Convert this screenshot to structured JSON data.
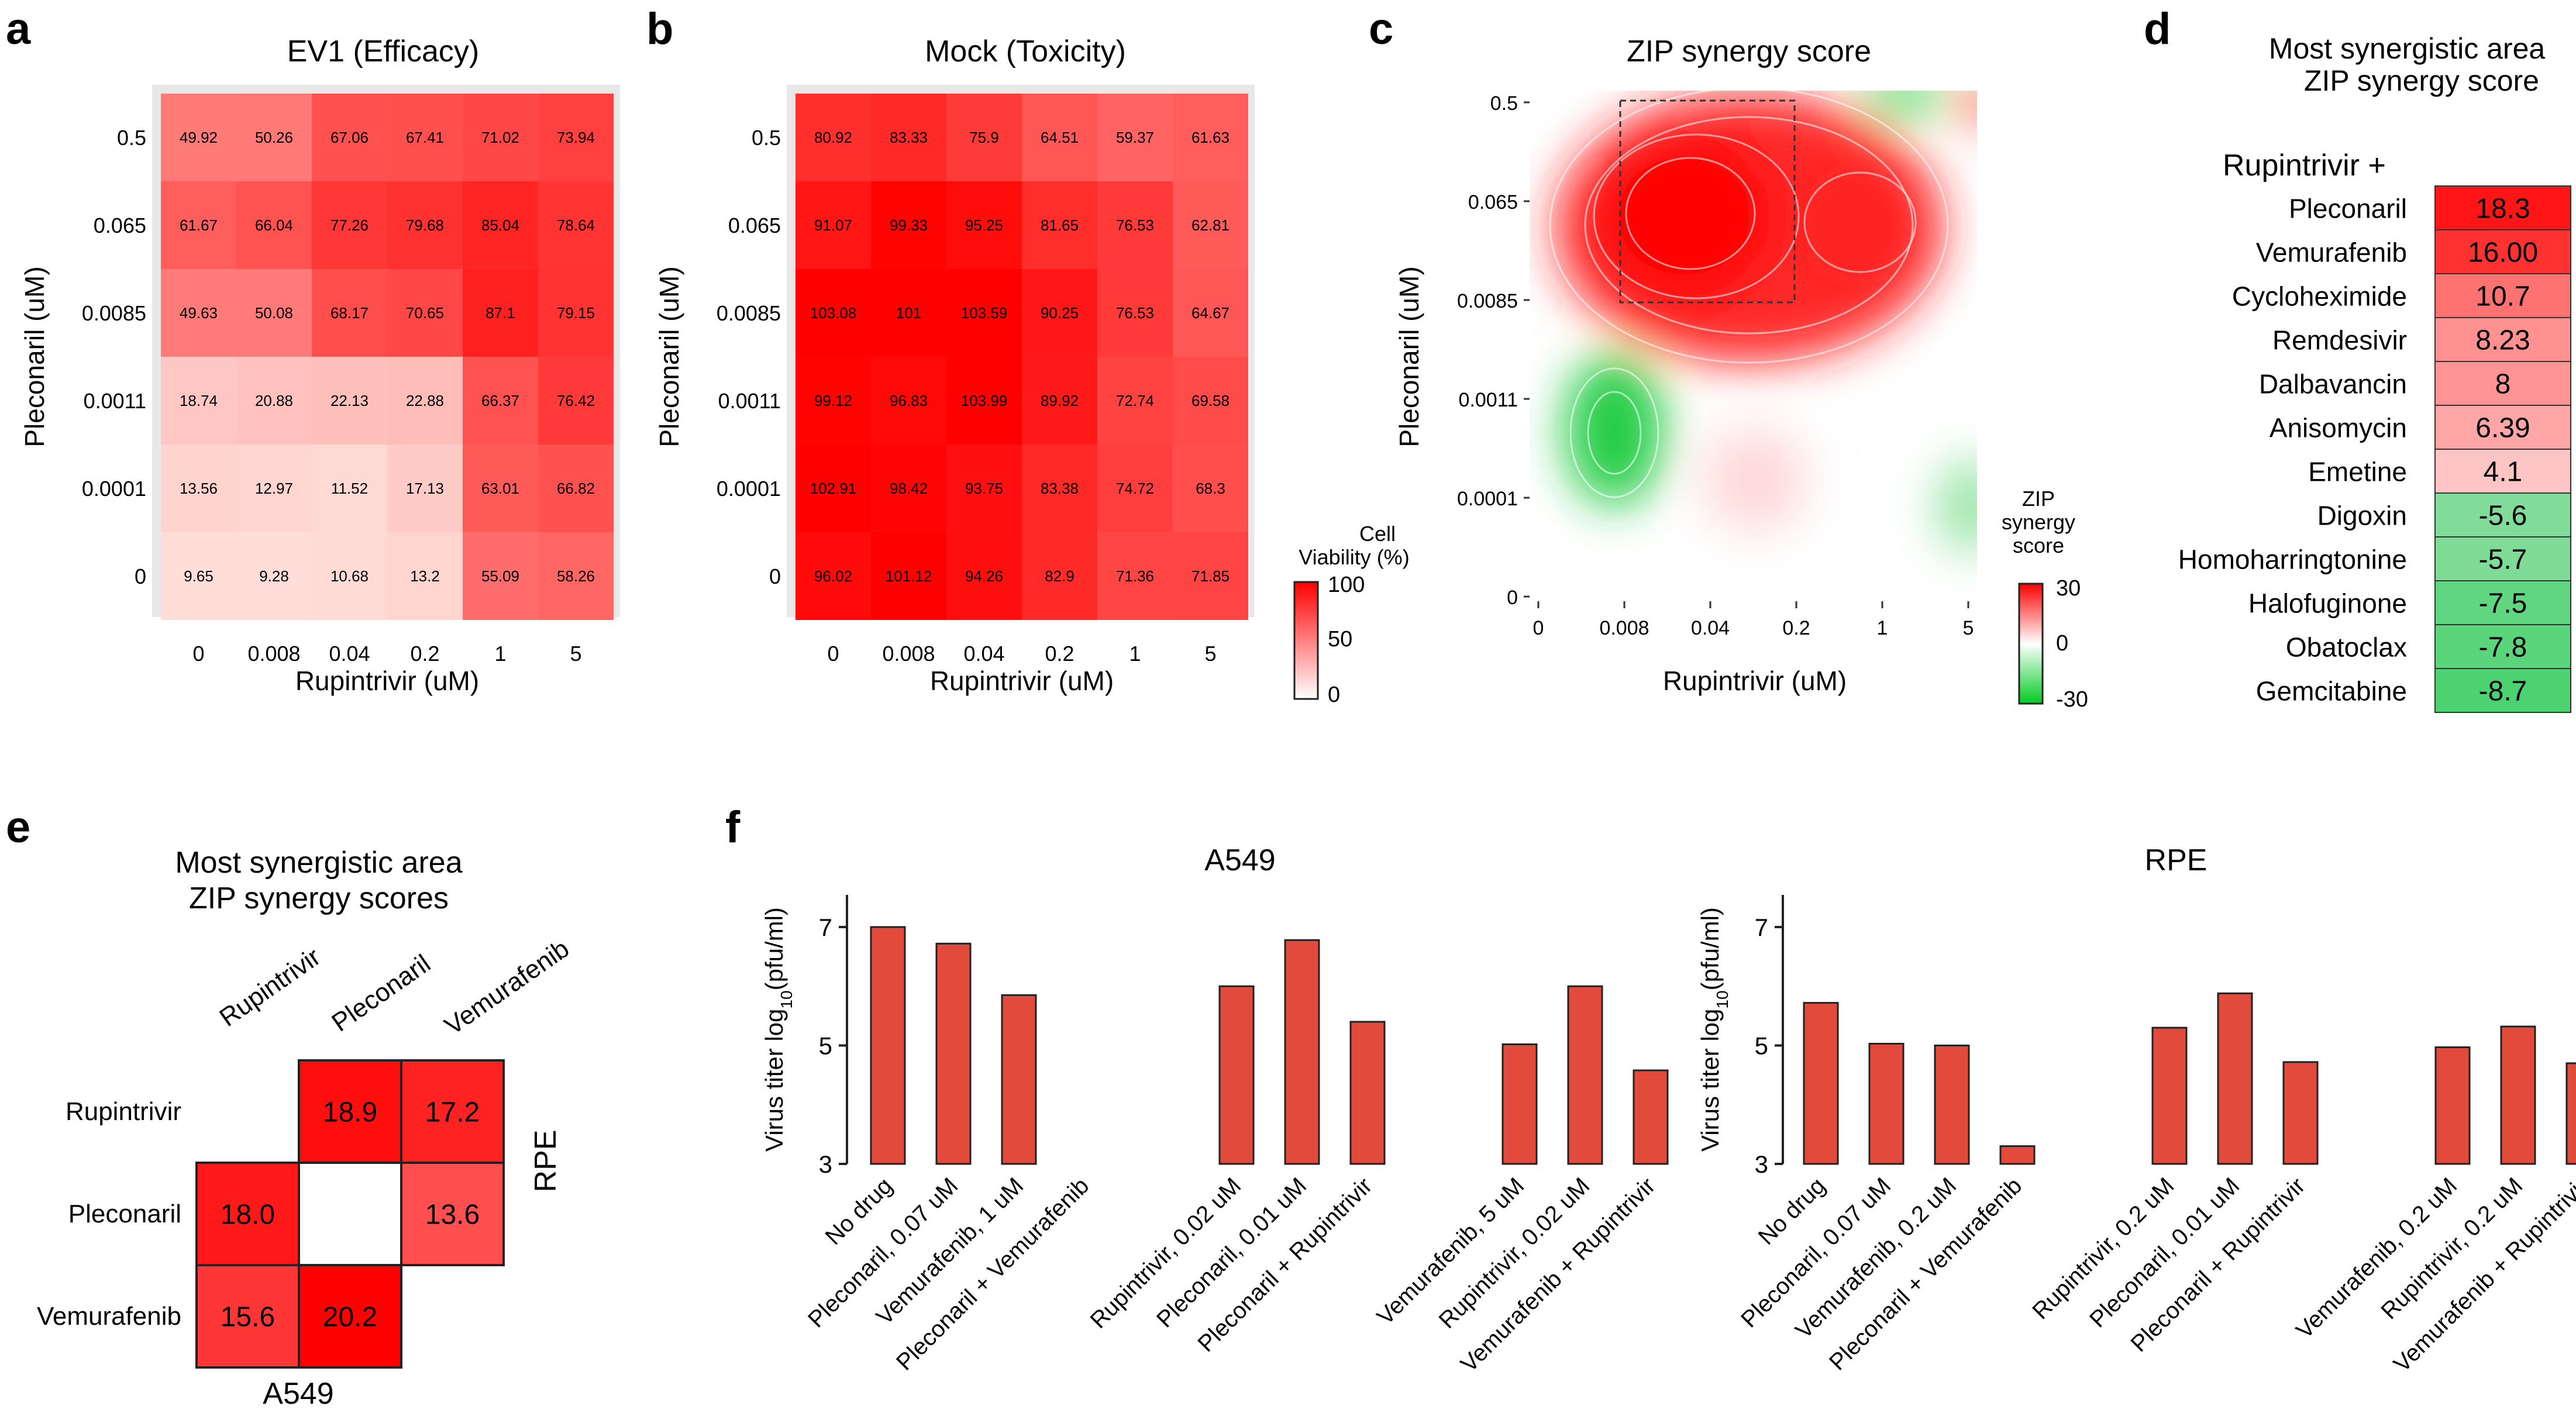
{
  "panels": {
    "a": {
      "letter": "a",
      "title": "EV1 (Efficacy)"
    },
    "b": {
      "letter": "b",
      "title": "Mock (Toxicity)"
    },
    "c": {
      "letter": "c",
      "title": "ZIP synergy score"
    },
    "d": {
      "letter": "d",
      "title_line1": "Most synergistic area",
      "title_line2": "ZIP synergy score",
      "subtitle": "Rupintrivir +"
    },
    "e": {
      "letter": "e",
      "title_line1": "Most synergistic area",
      "title_line2": "ZIP synergy scores"
    },
    "f": {
      "letter": "f"
    }
  },
  "colors": {
    "red": "#ff0000",
    "green": "#22cc44",
    "bar": "#e24a3b",
    "cell_low": "#fdf0ec"
  },
  "chart_data": [
    {
      "id": "a",
      "type": "heatmap",
      "title": "EV1 (Efficacy)",
      "xlabel": "Rupintrivir (uM)",
      "ylabel": "Pleconaril (uM)",
      "x": [
        "0",
        "0.008",
        "0.04",
        "0.2",
        "1",
        "5"
      ],
      "y": [
        "0.5",
        "0.065",
        "0.0085",
        "0.0011",
        "0.0001",
        "0"
      ],
      "range": [
        0,
        100
      ],
      "values": [
        [
          "49.92",
          "50.26",
          "67.06",
          "67.41",
          "71.02",
          "73.94"
        ],
        [
          "61.67",
          "66.04",
          "77.26",
          "79.68",
          "85.04",
          "78.64"
        ],
        [
          "49.63",
          "50.08",
          "68.17",
          "70.65",
          "87.1",
          "79.15"
        ],
        [
          "18.74",
          "20.88",
          "22.13",
          "22.88",
          "66.37",
          "76.42"
        ],
        [
          "13.56",
          "12.97",
          "11.52",
          "17.13",
          "63.01",
          "66.82"
        ],
        [
          "9.65",
          "9.28",
          "10.68",
          "13.2",
          "55.09",
          "58.26"
        ]
      ]
    },
    {
      "id": "b",
      "type": "heatmap",
      "title": "Mock (Toxicity)",
      "xlabel": "Rupintrivir (uM)",
      "ylabel": "Pleconaril (uM)",
      "x": [
        "0",
        "0.008",
        "0.04",
        "0.2",
        "1",
        "5"
      ],
      "y": [
        "0.5",
        "0.065",
        "0.0085",
        "0.0011",
        "0.0001",
        "0"
      ],
      "range": [
        0,
        100
      ],
      "values": [
        [
          "80.92",
          "83.33",
          "75.9",
          "64.51",
          "59.37",
          "61.63"
        ],
        [
          "91.07",
          "99.33",
          "95.25",
          "81.65",
          "76.53",
          "62.81"
        ],
        [
          "103.08",
          "101",
          "103.59",
          "90.25",
          "76.53",
          "64.67"
        ],
        [
          "99.12",
          "96.83",
          "103.99",
          "89.92",
          "72.74",
          "69.58"
        ],
        [
          "102.91",
          "98.42",
          "93.75",
          "83.38",
          "74.72",
          "68.3"
        ],
        [
          "96.02",
          "101.12",
          "94.26",
          "82.9",
          "71.36",
          "71.85"
        ]
      ],
      "colorbar": {
        "title": [
          "Cell",
          "Viability (%)"
        ],
        "ticks": [
          "100",
          "50",
          "0"
        ]
      }
    },
    {
      "id": "c",
      "type": "heatmap",
      "title": "ZIP synergy score",
      "xlabel": "Rupintrivir (uM)",
      "ylabel": "Pleconaril (uM)",
      "x": [
        "0",
        "0.008",
        "0.04",
        "0.2",
        "1",
        "5"
      ],
      "y": [
        "0.5",
        "0.065",
        "0.0085",
        "0.0011",
        "0.0001",
        "0"
      ],
      "range": [
        -30,
        30
      ],
      "highlight_region": {
        "x": [
          "0.008",
          "0.2"
        ],
        "y": [
          "0.0085",
          "0.5"
        ]
      },
      "colorbar": {
        "title": [
          "ZIP",
          "synergy",
          "score"
        ],
        "ticks": [
          "30",
          "0",
          "-30"
        ]
      }
    },
    {
      "id": "d",
      "type": "table",
      "title": "Most synergistic area ZIP synergy score",
      "header": "Rupintrivir +",
      "rows": [
        {
          "drug": "Pleconaril",
          "score": "18.3",
          "v": 18.3
        },
        {
          "drug": "Vemurafenib",
          "score": "16.00",
          "v": 16.0
        },
        {
          "drug": "Cycloheximide",
          "score": "10.7",
          "v": 10.7
        },
        {
          "drug": "Remdesivir",
          "score": "8.23",
          "v": 8.23
        },
        {
          "drug": "Dalbavancin",
          "score": "8",
          "v": 8
        },
        {
          "drug": "Anisomycin",
          "score": "6.39",
          "v": 6.39
        },
        {
          "drug": "Emetine",
          "score": "4.1",
          "v": 4.1
        },
        {
          "drug": "Digoxin",
          "score": "-5.6",
          "v": -5.6
        },
        {
          "drug": "Homoharringtonine",
          "score": "-5.7",
          "v": -5.7
        },
        {
          "drug": "Halofuginone",
          "score": "-7.5",
          "v": -7.5
        },
        {
          "drug": "Obatoclax",
          "score": "-7.8",
          "v": -7.8
        },
        {
          "drug": "Gemcitabine",
          "score": "-8.7",
          "v": -8.7
        }
      ]
    },
    {
      "id": "e",
      "type": "table",
      "title": "Most synergistic area ZIP synergy scores",
      "col_labels": [
        "Rupintrivir",
        "Pleconaril",
        "Vemurafenib"
      ],
      "row_labels": [
        "Rupintrivir",
        "Pleconaril",
        "Vemurafenib"
      ],
      "rpe_label": "RPE",
      "a549_label": "A549",
      "rpe": [
        {
          "pair": [
            "Rupintrivir",
            "Pleconaril"
          ],
          "value": "18.9",
          "v": 18.9
        },
        {
          "pair": [
            "Rupintrivir",
            "Vemurafenib"
          ],
          "value": "17.2",
          "v": 17.2
        },
        {
          "pair": [
            "Pleconaril",
            "Vemurafenib"
          ],
          "value": "13.6",
          "v": 13.6
        }
      ],
      "a549": [
        {
          "pair": [
            "Pleconaril",
            "Rupintrivir"
          ],
          "value": "18.0",
          "v": 18.0
        },
        {
          "pair": [
            "Vemurafenib",
            "Rupintrivir"
          ],
          "value": "15.6",
          "v": 15.6
        },
        {
          "pair": [
            "Vemurafenib",
            "Pleconaril"
          ],
          "value": "20.2",
          "v": 20.2
        }
      ]
    },
    {
      "id": "f-a549",
      "type": "bar",
      "title": "A549",
      "ylabel": "Virus titer log10(pfu/ml)",
      "ylim": [
        3,
        7.6
      ],
      "yticks": [
        "3",
        "5",
        "7"
      ],
      "categories": [
        "No drug",
        "Pleconaril, 0.07 uM",
        "Vemurafenib, 1 uM",
        "Pleconaril + Vemurafenib",
        "Rupintrivir, 0.02 uM",
        "Pleconaril, 0.01 uM",
        "Pleconaril + Rupintrivir",
        "Vemurafenib, 5 uM",
        "Rupintrivir, 0.02 uM",
        "Vemurafenib + Rupintrivir"
      ],
      "values": [
        7.0,
        6.72,
        5.85,
        null,
        6.0,
        6.78,
        5.4,
        5.02,
        6.0,
        4.58
      ],
      "groups": [
        0,
        0,
        0,
        0,
        1,
        1,
        1,
        2,
        2,
        2
      ]
    },
    {
      "id": "f-rpe",
      "type": "bar",
      "title": "RPE",
      "ylabel": "Virus titer log10(pfu/ml)",
      "ylim": [
        3,
        7.6
      ],
      "yticks": [
        "3",
        "5",
        "7"
      ],
      "categories": [
        "No drug",
        "Pleconaril, 0.07 uM",
        "Vemurafenib, 0.2 uM",
        "Pleconaril + Vemurafenib",
        "Rupintrivir, 0.2 uM",
        "Pleconaril, 0.01 uM",
        "Pleconaril + Rupintrivir",
        "Vemurafenib, 0.2 uM",
        "Rupintrivir, 0.2 uM",
        "Vemurafenib + Rupintrivir"
      ],
      "values": [
        5.72,
        5.03,
        5.0,
        3.3,
        5.3,
        5.88,
        4.72,
        4.97,
        5.32,
        4.7
      ],
      "groups": [
        0,
        0,
        0,
        0,
        1,
        1,
        1,
        2,
        2,
        2
      ]
    }
  ]
}
